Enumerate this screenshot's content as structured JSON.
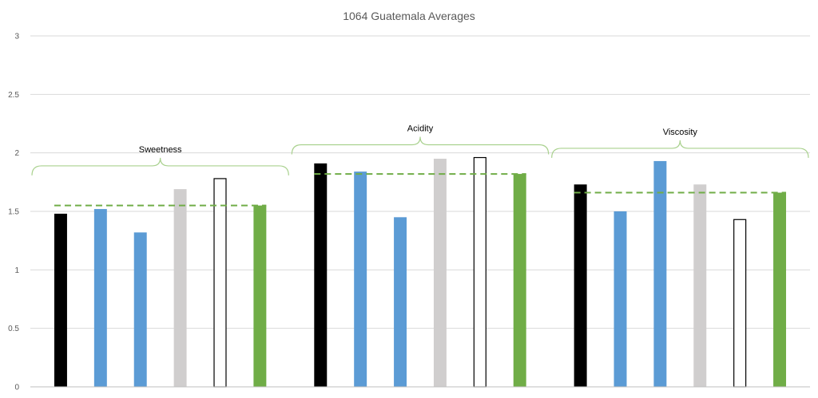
{
  "chart_data": {
    "type": "bar",
    "title": "1064 Guatemala Averages",
    "xlabel": "",
    "ylabel": "",
    "ylim": [
      0,
      3
    ],
    "yticks": [
      "0",
      "0.5",
      "1",
      "1.5",
      "2",
      "2.5",
      "3"
    ],
    "grid": true,
    "legend": "none",
    "groups": [
      {
        "label": "Sweetness",
        "values": [
          1.48,
          1.52,
          1.32,
          1.69,
          1.78,
          1.55
        ],
        "average": 1.55
      },
      {
        "label": "Acidity",
        "values": [
          1.91,
          1.84,
          1.45,
          1.95,
          1.96,
          1.82
        ],
        "average": 1.82
      },
      {
        "label": "Viscosity",
        "values": [
          1.73,
          1.5,
          1.93,
          1.73,
          1.43,
          1.66
        ],
        "average": 1.66
      }
    ],
    "bar_colors": [
      "#000000",
      "#5b9bd5",
      "#5b9bd5",
      "#d0cece",
      "#ffffff",
      "#70ad47"
    ],
    "bar_outline_colors": [
      "#000000",
      "#5b9bd5",
      "#5b9bd5",
      "#d0cece",
      "#000000",
      "#70ad47"
    ],
    "average_line_color": "#70ad47",
    "bracket_color": "#a9d18e",
    "gridline_color": "#d9d9d9",
    "axis_color": "#bfbfbf"
  }
}
